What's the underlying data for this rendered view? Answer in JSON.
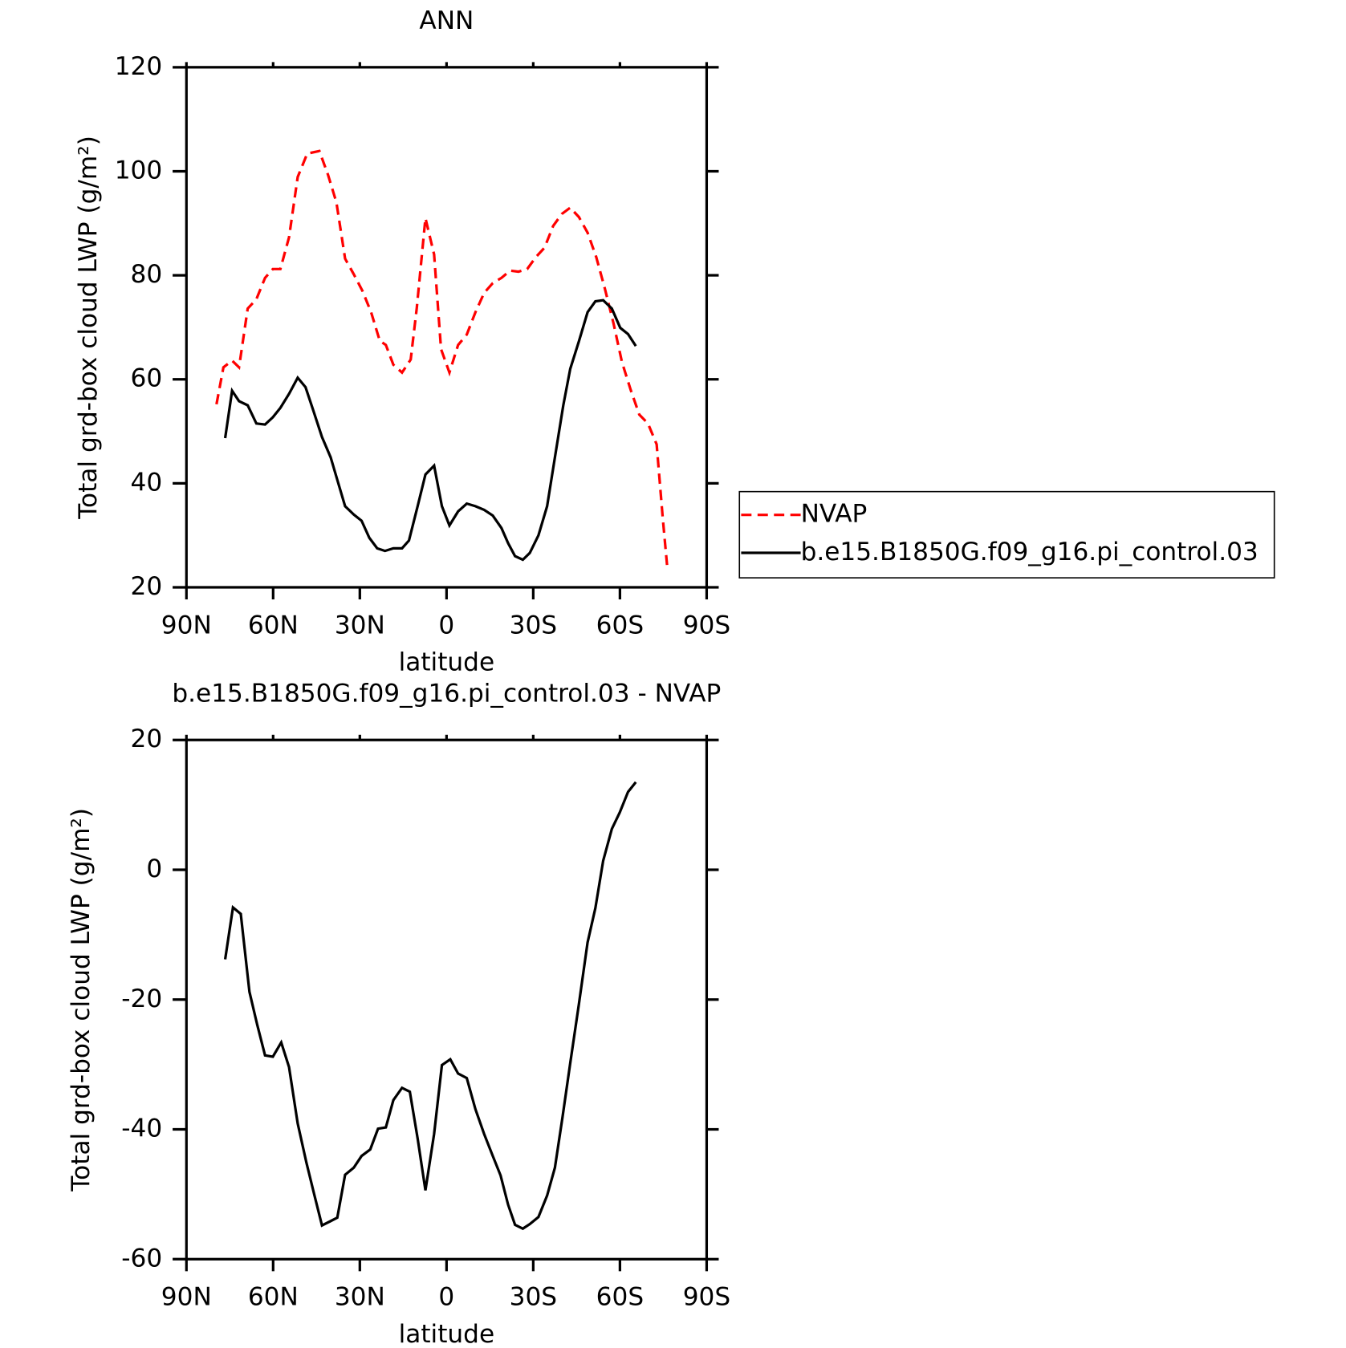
{
  "chart_data": [
    {
      "type": "line",
      "title": "ANN",
      "xlabel": "latitude",
      "ylabel": "Total grd-box cloud LWP (g/m²)",
      "xlim": [
        90,
        -90
      ],
      "xticks": [
        {
          "value": 90,
          "label": "90N"
        },
        {
          "value": 60,
          "label": "60N"
        },
        {
          "value": 30,
          "label": "30N"
        },
        0,
        {
          "value": -30,
          "label": "30S"
        },
        {
          "value": -60,
          "label": "60S"
        },
        {
          "value": -90,
          "label": "90S"
        }
      ],
      "ylim": [
        20,
        120
      ],
      "yticks": [
        20,
        40,
        60,
        80,
        100,
        120
      ],
      "legend": "right",
      "series": [
        {
          "name": "NVAP",
          "color": "#ff0000",
          "dashed": true,
          "x": [
            79.6,
            77.2,
            74.2,
            71.8,
            68.8,
            65.8,
            62.8,
            60.1,
            57.5,
            54.5,
            51.5,
            48.2,
            44.0,
            41.0,
            38.1,
            35.1,
            32.1,
            29.1,
            26.1,
            23.1,
            21.0,
            18.4,
            15.4,
            12.4,
            10.3,
            7.3,
            4.3,
            1.9,
            -1.0,
            -4.0,
            -7.0,
            -10.0,
            -13.0,
            -16.0,
            -19.0,
            -22.0,
            -24.9,
            -27.9,
            -30.9,
            -33.9,
            -36.9,
            -39.9,
            -42.8,
            -45.8,
            -48.8,
            -51.8,
            -54.8,
            -57.8,
            -60.7,
            -63.7,
            -66.7,
            -69.7,
            -72.7,
            -74.8,
            -76.3
          ],
          "values": [
            55.2,
            62.3,
            63.6,
            62.3,
            73.6,
            75.4,
            79.5,
            81.2,
            81.2,
            87.3,
            98.9,
            103.4,
            103.9,
            99.3,
            94.0,
            83.2,
            80.2,
            77.0,
            72.9,
            67.4,
            66.6,
            62.8,
            61.3,
            63.8,
            73.7,
            91.0,
            84.0,
            65.8,
            61.3,
            66.6,
            68.6,
            72.9,
            76.6,
            78.5,
            79.5,
            80.9,
            80.7,
            81.2,
            83.5,
            85.3,
            89.5,
            91.8,
            93.0,
            91.2,
            88.2,
            83.5,
            77.4,
            70.7,
            63.3,
            58.0,
            53.2,
            51.5,
            47.5,
            33.4,
            24.3
          ]
        },
        {
          "name": "b.e15.B1850G.f09_g16.pi_control.03",
          "color": "#000000",
          "dashed": false,
          "x": [
            76.6,
            74.2,
            71.8,
            68.8,
            65.8,
            62.8,
            60.1,
            57.5,
            54.5,
            51.5,
            48.8,
            46.1,
            43.1,
            40.1,
            37.5,
            35.1,
            32.1,
            29.4,
            26.7,
            24.0,
            21.3,
            18.4,
            15.4,
            13.0,
            10.0,
            7.3,
            4.3,
            1.6,
            -1.0,
            -4.0,
            -7.0,
            -10.0,
            -13.0,
            -16.0,
            -19.0,
            -21.3,
            -23.7,
            -26.4,
            -28.8,
            -31.8,
            -34.8,
            -37.5,
            -40.4,
            -42.8,
            -45.8,
            -48.8,
            -51.5,
            -54.2,
            -57.2,
            -60.1,
            -62.8,
            -65.5
          ],
          "values": [
            48.7,
            57.8,
            55.8,
            55.0,
            51.5,
            51.3,
            52.7,
            54.5,
            57.2,
            60.3,
            58.5,
            54.0,
            48.9,
            45.0,
            40.1,
            35.6,
            34.0,
            32.8,
            29.5,
            27.5,
            27.0,
            27.5,
            27.5,
            29.0,
            35.6,
            41.7,
            43.4,
            35.6,
            31.9,
            34.6,
            36.1,
            35.6,
            34.9,
            33.8,
            31.4,
            28.5,
            26.0,
            25.3,
            26.6,
            30.0,
            35.6,
            45.0,
            55.0,
            62.0,
            67.3,
            72.9,
            75.0,
            75.2,
            73.6,
            69.9,
            68.7,
            66.4
          ]
        }
      ]
    },
    {
      "type": "line",
      "title": "b.e15.B1850G.f09_g16.pi_control.03 - NVAP",
      "xlabel": "latitude",
      "ylabel": "Total grd-box cloud LWP (g/m²)",
      "xlim": [
        90,
        -90
      ],
      "xticks": [
        {
          "value": 90,
          "label": "90N"
        },
        {
          "value": 60,
          "label": "60N"
        },
        {
          "value": 30,
          "label": "30N"
        },
        0,
        {
          "value": -30,
          "label": "30S"
        },
        {
          "value": -60,
          "label": "60S"
        },
        {
          "value": -90,
          "label": "90S"
        }
      ],
      "ylim": [
        -60,
        20
      ],
      "yticks": [
        -60,
        -40,
        -20,
        0,
        20
      ],
      "series": [
        {
          "color": "#000000",
          "dashed": false,
          "x": [
            76.6,
            73.9,
            71.2,
            68.2,
            65.5,
            62.8,
            60.1,
            57.2,
            54.5,
            51.5,
            48.5,
            45.8,
            43.1,
            40.4,
            37.8,
            35.1,
            32.1,
            29.4,
            26.4,
            23.7,
            21.0,
            18.4,
            15.4,
            12.7,
            10.0,
            7.3,
            4.3,
            1.6,
            -1.3,
            -4.0,
            -7.0,
            -10.0,
            -13.0,
            -16.0,
            -18.7,
            -21.3,
            -23.7,
            -26.4,
            -28.8,
            -31.8,
            -34.8,
            -37.5,
            -40.1,
            -42.8,
            -45.8,
            -48.8,
            -51.5,
            -54.2,
            -57.2,
            -59.9,
            -62.8,
            -65.5
          ],
          "values": [
            -13.8,
            -5.8,
            -6.8,
            -18.8,
            -23.9,
            -28.6,
            -28.8,
            -26.6,
            -30.4,
            -39.1,
            -45.1,
            -50.0,
            -54.8,
            -54.2,
            -53.6,
            -47.0,
            -45.9,
            -44.1,
            -43.1,
            -39.9,
            -39.7,
            -35.5,
            -33.6,
            -34.2,
            -41.4,
            -49.4,
            -40.7,
            -30.1,
            -29.2,
            -31.4,
            -32.1,
            -36.9,
            -40.7,
            -44.1,
            -47.1,
            -51.6,
            -54.7,
            -55.3,
            -54.6,
            -53.5,
            -50.2,
            -45.9,
            -38.2,
            -29.8,
            -20.7,
            -11.2,
            -5.9,
            1.4,
            6.3,
            8.8,
            12.0,
            13.5
          ]
        }
      ]
    }
  ]
}
